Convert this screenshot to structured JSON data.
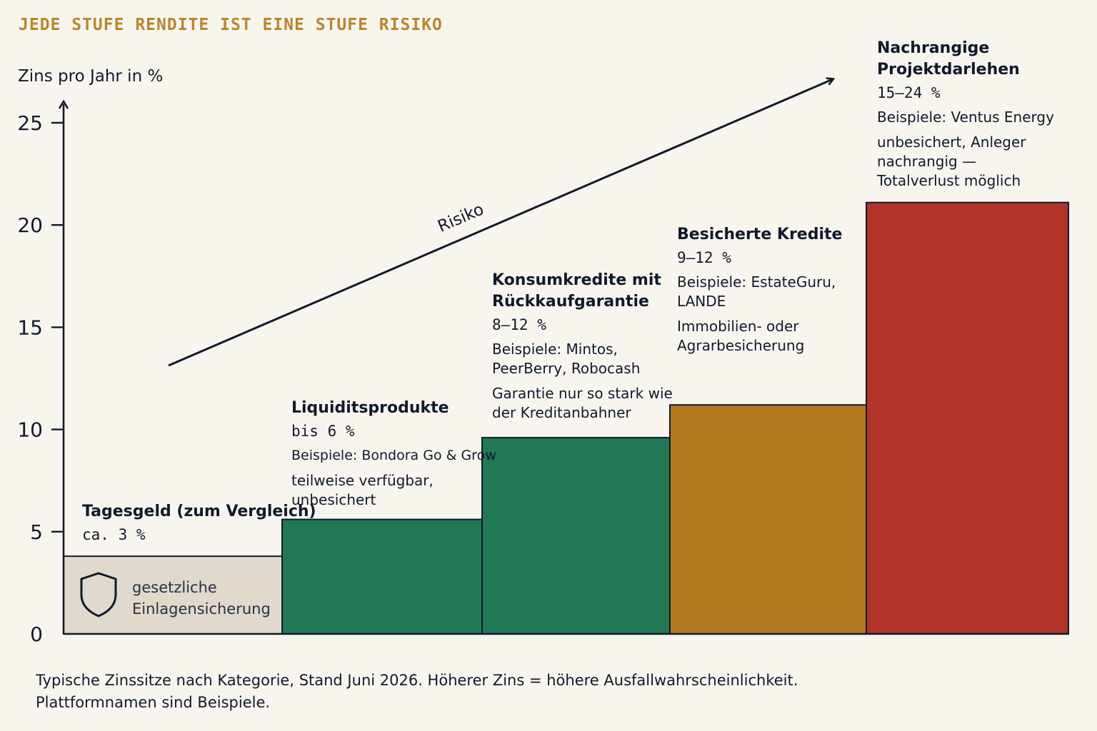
{
  "kicker": "JEDE STUFE RENDITE IST EINE STUFE RISIKO",
  "chart_data": {
    "type": "bar",
    "ylabel": "Zins pro Jahr in %",
    "ylim": [
      0,
      25
    ],
    "yticks": [
      0,
      5,
      10,
      15,
      20,
      25
    ],
    "risk_arrow_label": "Risiko",
    "categories": [
      "Tagesgeld (zum Vergleich)",
      "Liquiditsprodukte",
      "Konsumkredite mit Rückkaufgarantie",
      "Besicherte Kredite",
      "Nachrangige Projektdarlehen"
    ],
    "values": [
      3.8,
      5.6,
      9.6,
      11.2,
      21.1
    ],
    "colors": [
      "#e0d9cc",
      "#227755",
      "#227755",
      "#b27a1f",
      "#b13329"
    ],
    "items": [
      {
        "name": "Tagesgeld (zum Vergleich)",
        "rate": "ca. 3 %",
        "examples": "",
        "note": "gesetzliche\nEinlagensicherung"
      },
      {
        "name": "Liquiditsprodukte",
        "rate": "bis 6 %",
        "examples": "Beispiele: Bondora Go & Grow",
        "note": "teilweise verfügbar,\nunbesichert"
      },
      {
        "name": "Konsumkredite mit\nRückkaufgarantie",
        "rate": "8–12 %",
        "examples": "Beispiele: Mintos,\nPeerBerry, Robocash",
        "note": "Garantie nur so stark wie\nder Kreditanbahner"
      },
      {
        "name": "Besicherte Kredite",
        "rate": "9–12 %",
        "examples": "Beispiele: EstateGuru,\nLANDE",
        "note": "Immobilien- oder\nAgrarbesicherung"
      },
      {
        "name": "Nachrangige\nProjektdarlehen",
        "rate": "15–24 %",
        "examples": "Beispiele: Ventus Energy",
        "note": "unbesichert, Anleger\nnachrangig —\nTotalverlust möglich"
      }
    ]
  },
  "caption": "Typische Zinssitze nach Kategorie, Stand Juni 2026. Höherer Zins = höhere Ausfallwahrscheinlichkeit. Plattformnamen sind Beispiele."
}
